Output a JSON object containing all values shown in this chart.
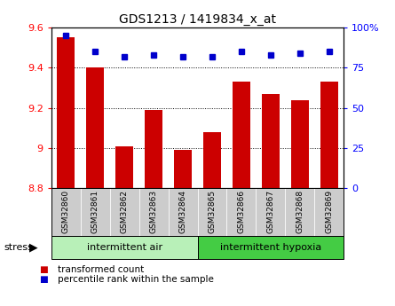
{
  "title": "GDS1213 / 1419834_x_at",
  "samples": [
    "GSM32860",
    "GSM32861",
    "GSM32862",
    "GSM32863",
    "GSM32864",
    "GSM32865",
    "GSM32866",
    "GSM32867",
    "GSM32868",
    "GSM32869"
  ],
  "bar_values": [
    9.55,
    9.4,
    9.01,
    9.19,
    8.99,
    9.08,
    9.33,
    9.27,
    9.24,
    9.33
  ],
  "percentile_values": [
    95,
    85,
    82,
    83,
    82,
    82,
    85,
    83,
    84,
    85
  ],
  "bar_color": "#cc0000",
  "dot_color": "#0000cc",
  "ylim_left": [
    8.8,
    9.6
  ],
  "ylim_right": [
    0,
    100
  ],
  "yticks_left": [
    8.8,
    9.0,
    9.2,
    9.4,
    9.6
  ],
  "yticks_right": [
    0,
    25,
    50,
    75,
    100
  ],
  "group1_label": "intermittent air",
  "group2_label": "intermittent hypoxia",
  "group1_count": 5,
  "group2_count": 5,
  "stress_label": "stress",
  "legend_bar_label": "transformed count",
  "legend_dot_label": "percentile rank within the sample",
  "group1_color": "#b8f0b8",
  "group2_color": "#44cc44",
  "tick_bg_color": "#cccccc",
  "bar_baseline": 8.8,
  "bar_width": 0.6
}
